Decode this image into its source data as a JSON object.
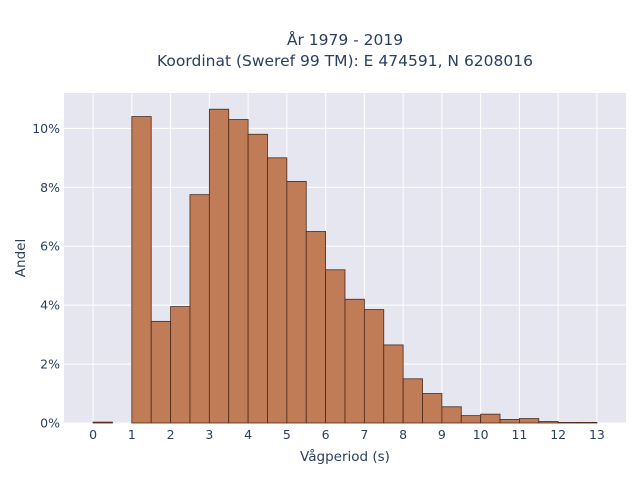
{
  "chart_data": {
    "type": "bar",
    "title_lines": [
      "År 1979 - 2019",
      "Koordinat (Sweref 99 TM): E 474591, N 6208016"
    ],
    "xlabel": "Vågperiod (s)",
    "ylabel": "Andel",
    "x_ticks": [
      "0",
      "1",
      "2",
      "3",
      "4",
      "5",
      "6",
      "7",
      "8",
      "9",
      "10",
      "11",
      "12",
      "13"
    ],
    "y_ticks": [
      "0%",
      "2%",
      "4%",
      "6%",
      "8%",
      "10%"
    ],
    "xlim": [
      -0.75,
      13.75
    ],
    "ylim": [
      0,
      11.2
    ],
    "bin_width": 0.5,
    "bins": [
      {
        "start": 0.0,
        "value": 0.03
      },
      {
        "start": 0.5,
        "value": 0.0
      },
      {
        "start": 1.0,
        "value": 10.4
      },
      {
        "start": 1.5,
        "value": 3.45
      },
      {
        "start": 2.0,
        "value": 3.95
      },
      {
        "start": 2.5,
        "value": 7.75
      },
      {
        "start": 3.0,
        "value": 10.65
      },
      {
        "start": 3.5,
        "value": 10.3
      },
      {
        "start": 4.0,
        "value": 9.8
      },
      {
        "start": 4.5,
        "value": 9.0
      },
      {
        "start": 5.0,
        "value": 8.2
      },
      {
        "start": 5.5,
        "value": 6.5
      },
      {
        "start": 6.0,
        "value": 5.2
      },
      {
        "start": 6.5,
        "value": 4.2
      },
      {
        "start": 7.0,
        "value": 3.85
      },
      {
        "start": 7.5,
        "value": 2.65
      },
      {
        "start": 8.0,
        "value": 1.5
      },
      {
        "start": 8.5,
        "value": 1.0
      },
      {
        "start": 9.0,
        "value": 0.55
      },
      {
        "start": 9.5,
        "value": 0.25
      },
      {
        "start": 10.0,
        "value": 0.3
      },
      {
        "start": 10.5,
        "value": 0.12
      },
      {
        "start": 11.0,
        "value": 0.15
      },
      {
        "start": 11.5,
        "value": 0.05
      },
      {
        "start": 12.0,
        "value": 0.02
      },
      {
        "start": 12.5,
        "value": 0.02
      }
    ],
    "grid": true,
    "colors": {
      "bar_fill": "#c07b57",
      "bar_stroke": "#4a2a1a",
      "plot_bg": "#e5e6f0",
      "grid": "#ffffff",
      "text": "#2a3f5f"
    }
  }
}
